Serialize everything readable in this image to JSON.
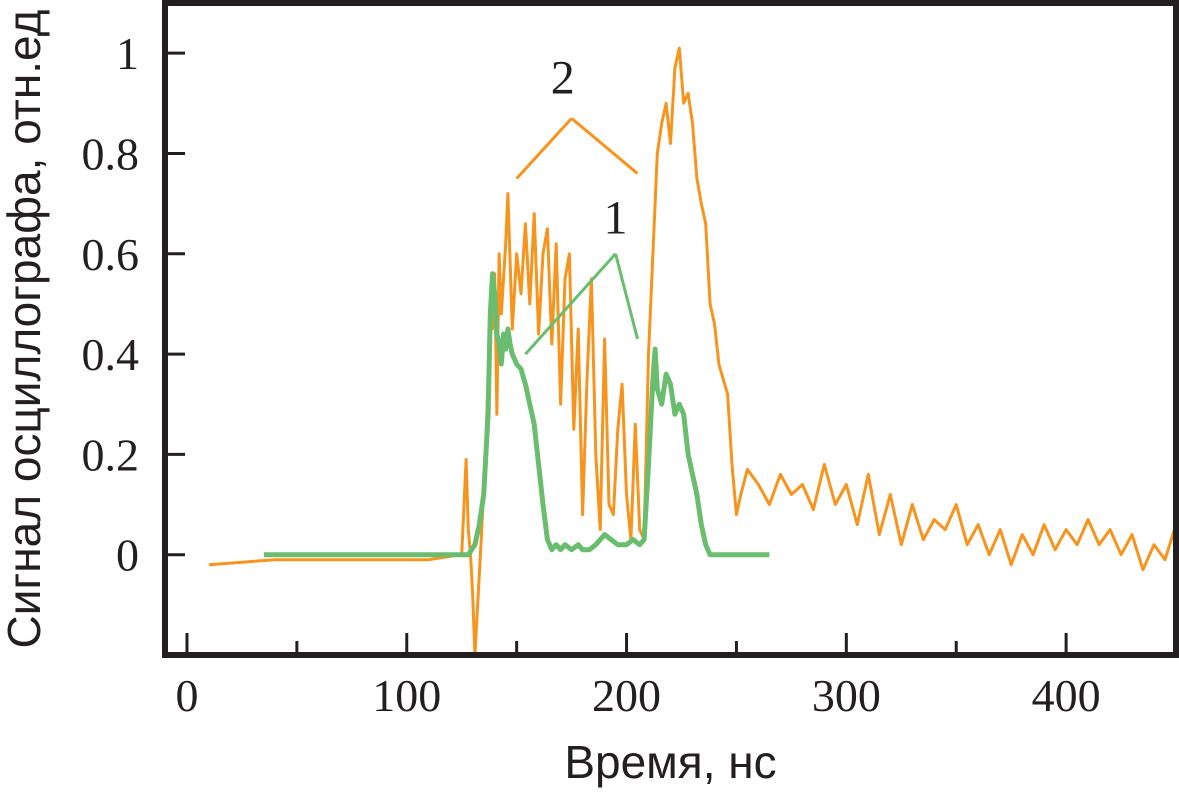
{
  "chart_data": {
    "type": "line",
    "title": "",
    "xlabel": "Время, нс",
    "ylabel": "Сигнал осциллографа, отн.ед",
    "xlim": [
      -10,
      450
    ],
    "ylim": [
      -0.2,
      1.1
    ],
    "x_ticks": [
      0,
      100,
      200,
      300,
      400
    ],
    "x_minor_ticks": [
      50,
      150,
      250,
      350
    ],
    "y_ticks": [
      0,
      0.2,
      0.4,
      0.6,
      0.8,
      1
    ],
    "y_tick_labels": [
      "0",
      "0.2",
      "0.4",
      "0.6",
      "0.8",
      "1"
    ],
    "x_tick_labels": [
      "0",
      "100",
      "200",
      "300",
      "400"
    ],
    "grid": false,
    "legend": "none",
    "series": [
      {
        "name": "2",
        "color": "#f7941d",
        "points": [
          [
            10,
            -0.02
          ],
          [
            40,
            -0.01
          ],
          [
            80,
            -0.01
          ],
          [
            110,
            -0.01
          ],
          [
            125,
            0.0
          ],
          [
            127,
            0.19
          ],
          [
            128,
            0.05
          ],
          [
            129,
            0.0
          ],
          [
            130,
            -0.08
          ],
          [
            131,
            -0.2
          ],
          [
            132,
            -0.12
          ],
          [
            134,
            0.04
          ],
          [
            136,
            0.22
          ],
          [
            138,
            0.5
          ],
          [
            139,
            0.45
          ],
          [
            140,
            0.56
          ],
          [
            141,
            0.28
          ],
          [
            142,
            0.6
          ],
          [
            143,
            0.48
          ],
          [
            145,
            0.62
          ],
          [
            146,
            0.72
          ],
          [
            148,
            0.45
          ],
          [
            150,
            0.6
          ],
          [
            152,
            0.52
          ],
          [
            154,
            0.66
          ],
          [
            156,
            0.5
          ],
          [
            158,
            0.68
          ],
          [
            160,
            0.44
          ],
          [
            162,
            0.6
          ],
          [
            164,
            0.65
          ],
          [
            166,
            0.42
          ],
          [
            168,
            0.62
          ],
          [
            170,
            0.3
          ],
          [
            172,
            0.55
          ],
          [
            174,
            0.6
          ],
          [
            176,
            0.25
          ],
          [
            178,
            0.45
          ],
          [
            180,
            0.08
          ],
          [
            182,
            0.35
          ],
          [
            184,
            0.55
          ],
          [
            186,
            0.2
          ],
          [
            188,
            0.05
          ],
          [
            190,
            0.43
          ],
          [
            192,
            0.1
          ],
          [
            194,
            0.08
          ],
          [
            196,
            0.25
          ],
          [
            198,
            0.34
          ],
          [
            200,
            0.12
          ],
          [
            202,
            0.03
          ],
          [
            204,
            0.26
          ],
          [
            206,
            0.05
          ],
          [
            208,
            0.03
          ],
          [
            210,
            0.4
          ],
          [
            212,
            0.6
          ],
          [
            214,
            0.8
          ],
          [
            216,
            0.86
          ],
          [
            218,
            0.9
          ],
          [
            220,
            0.82
          ],
          [
            222,
            0.97
          ],
          [
            224,
            1.01
          ],
          [
            226,
            0.9
          ],
          [
            228,
            0.92
          ],
          [
            230,
            0.86
          ],
          [
            232,
            0.75
          ],
          [
            234,
            0.7
          ],
          [
            236,
            0.66
          ],
          [
            238,
            0.5
          ],
          [
            240,
            0.46
          ],
          [
            242,
            0.38
          ],
          [
            244,
            0.35
          ],
          [
            246,
            0.32
          ],
          [
            248,
            0.18
          ],
          [
            250,
            0.08
          ],
          [
            252,
            0.12
          ],
          [
            255,
            0.17
          ],
          [
            260,
            0.14
          ],
          [
            265,
            0.1
          ],
          [
            270,
            0.16
          ],
          [
            275,
            0.12
          ],
          [
            280,
            0.14
          ],
          [
            285,
            0.09
          ],
          [
            290,
            0.18
          ],
          [
            295,
            0.1
          ],
          [
            300,
            0.14
          ],
          [
            305,
            0.06
          ],
          [
            310,
            0.16
          ],
          [
            315,
            0.04
          ],
          [
            320,
            0.12
          ],
          [
            325,
            0.02
          ],
          [
            330,
            0.1
          ],
          [
            335,
            0.03
          ],
          [
            340,
            0.07
          ],
          [
            345,
            0.05
          ],
          [
            350,
            0.1
          ],
          [
            355,
            0.02
          ],
          [
            360,
            0.06
          ],
          [
            365,
            0.0
          ],
          [
            370,
            0.05
          ],
          [
            375,
            -0.02
          ],
          [
            380,
            0.04
          ],
          [
            385,
            0.0
          ],
          [
            390,
            0.06
          ],
          [
            395,
            0.01
          ],
          [
            400,
            0.05
          ],
          [
            405,
            0.02
          ],
          [
            410,
            0.07
          ],
          [
            415,
            0.02
          ],
          [
            420,
            0.05
          ],
          [
            425,
            0.0
          ],
          [
            430,
            0.04
          ],
          [
            435,
            -0.03
          ],
          [
            440,
            0.02
          ],
          [
            445,
            -0.01
          ],
          [
            450,
            0.06
          ]
        ]
      },
      {
        "name": "1",
        "color": "#6abd6e",
        "points": [
          [
            35,
            0.0
          ],
          [
            80,
            0.0
          ],
          [
            120,
            0.0
          ],
          [
            128,
            0.0
          ],
          [
            131,
            0.02
          ],
          [
            133,
            0.06
          ],
          [
            135,
            0.12
          ],
          [
            137,
            0.28
          ],
          [
            138,
            0.48
          ],
          [
            139,
            0.56
          ],
          [
            140,
            0.52
          ],
          [
            141,
            0.44
          ],
          [
            142,
            0.42
          ],
          [
            143,
            0.38
          ],
          [
            144,
            0.44
          ],
          [
            145,
            0.41
          ],
          [
            146,
            0.45
          ],
          [
            147,
            0.42
          ],
          [
            148,
            0.4
          ],
          [
            150,
            0.38
          ],
          [
            152,
            0.37
          ],
          [
            154,
            0.34
          ],
          [
            156,
            0.3
          ],
          [
            158,
            0.26
          ],
          [
            160,
            0.18
          ],
          [
            162,
            0.1
          ],
          [
            164,
            0.03
          ],
          [
            166,
            0.01
          ],
          [
            168,
            0.02
          ],
          [
            170,
            0.01
          ],
          [
            172,
            0.02
          ],
          [
            175,
            0.01
          ],
          [
            178,
            0.02
          ],
          [
            180,
            0.01
          ],
          [
            183,
            0.01
          ],
          [
            186,
            0.02
          ],
          [
            190,
            0.04
          ],
          [
            193,
            0.03
          ],
          [
            196,
            0.02
          ],
          [
            200,
            0.02
          ],
          [
            203,
            0.03
          ],
          [
            206,
            0.02
          ],
          [
            208,
            0.03
          ],
          [
            210,
            0.18
          ],
          [
            212,
            0.35
          ],
          [
            213,
            0.41
          ],
          [
            214,
            0.33
          ],
          [
            216,
            0.3
          ],
          [
            218,
            0.36
          ],
          [
            220,
            0.34
          ],
          [
            222,
            0.28
          ],
          [
            224,
            0.3
          ],
          [
            226,
            0.28
          ],
          [
            228,
            0.2
          ],
          [
            230,
            0.16
          ],
          [
            232,
            0.12
          ],
          [
            234,
            0.06
          ],
          [
            236,
            0.02
          ],
          [
            238,
            0.0
          ],
          [
            242,
            0.0
          ],
          [
            250,
            0.0
          ],
          [
            258,
            0.0
          ],
          [
            265,
            0.0
          ]
        ]
      }
    ],
    "annotations": [
      {
        "text": "2",
        "x": 171,
        "y": 0.92,
        "color": "#f7941d",
        "targets": [
          [
            150,
            0.75
          ],
          [
            205,
            0.76
          ]
        ],
        "fork": [
          175,
          0.87
        ]
      },
      {
        "text": "1",
        "x": 195,
        "y": 0.64,
        "color": "#6abd6e",
        "targets": [
          [
            154,
            0.4
          ],
          [
            205,
            0.43
          ]
        ],
        "fork": [
          195,
          0.6
        ]
      }
    ]
  }
}
